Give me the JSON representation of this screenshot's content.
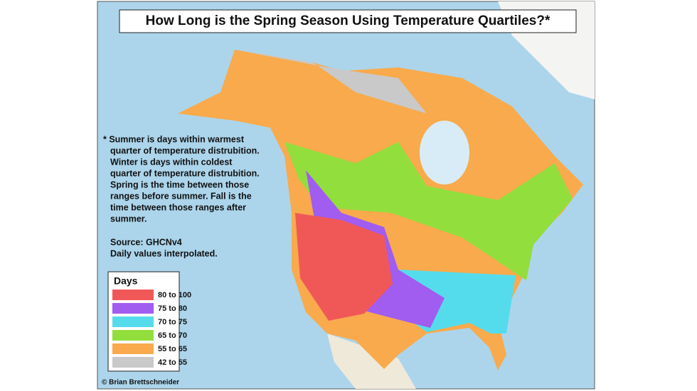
{
  "title": "How Long is the Spring Season Using Temperature Quartiles?*",
  "note": [
    "* Summer is days within warmest",
    "quarter of temperature distrubition.",
    "Winter is days within coldest",
    "quarter of temperature distrubition.",
    "Spring is the time between those",
    "ranges before summer. Fall is the",
    "time between those ranges after",
    "summer."
  ],
  "source": [
    "Source: GHCNv4",
    "Daily values interpolated."
  ],
  "legend": {
    "title": "Days",
    "items": [
      {
        "label": "80 to 100",
        "color": "#f05858"
      },
      {
        "label": "75 to 80",
        "color": "#a15cf0"
      },
      {
        "label": "70 to 75",
        "color": "#55dcec"
      },
      {
        "label": "65 to 70",
        "color": "#92de3c"
      },
      {
        "label": "55 to 65",
        "color": "#f8aa4c"
      },
      {
        "label": "42 to 55",
        "color": "#c9c9c9"
      }
    ]
  },
  "credit": "© Brian Brettschneider"
}
